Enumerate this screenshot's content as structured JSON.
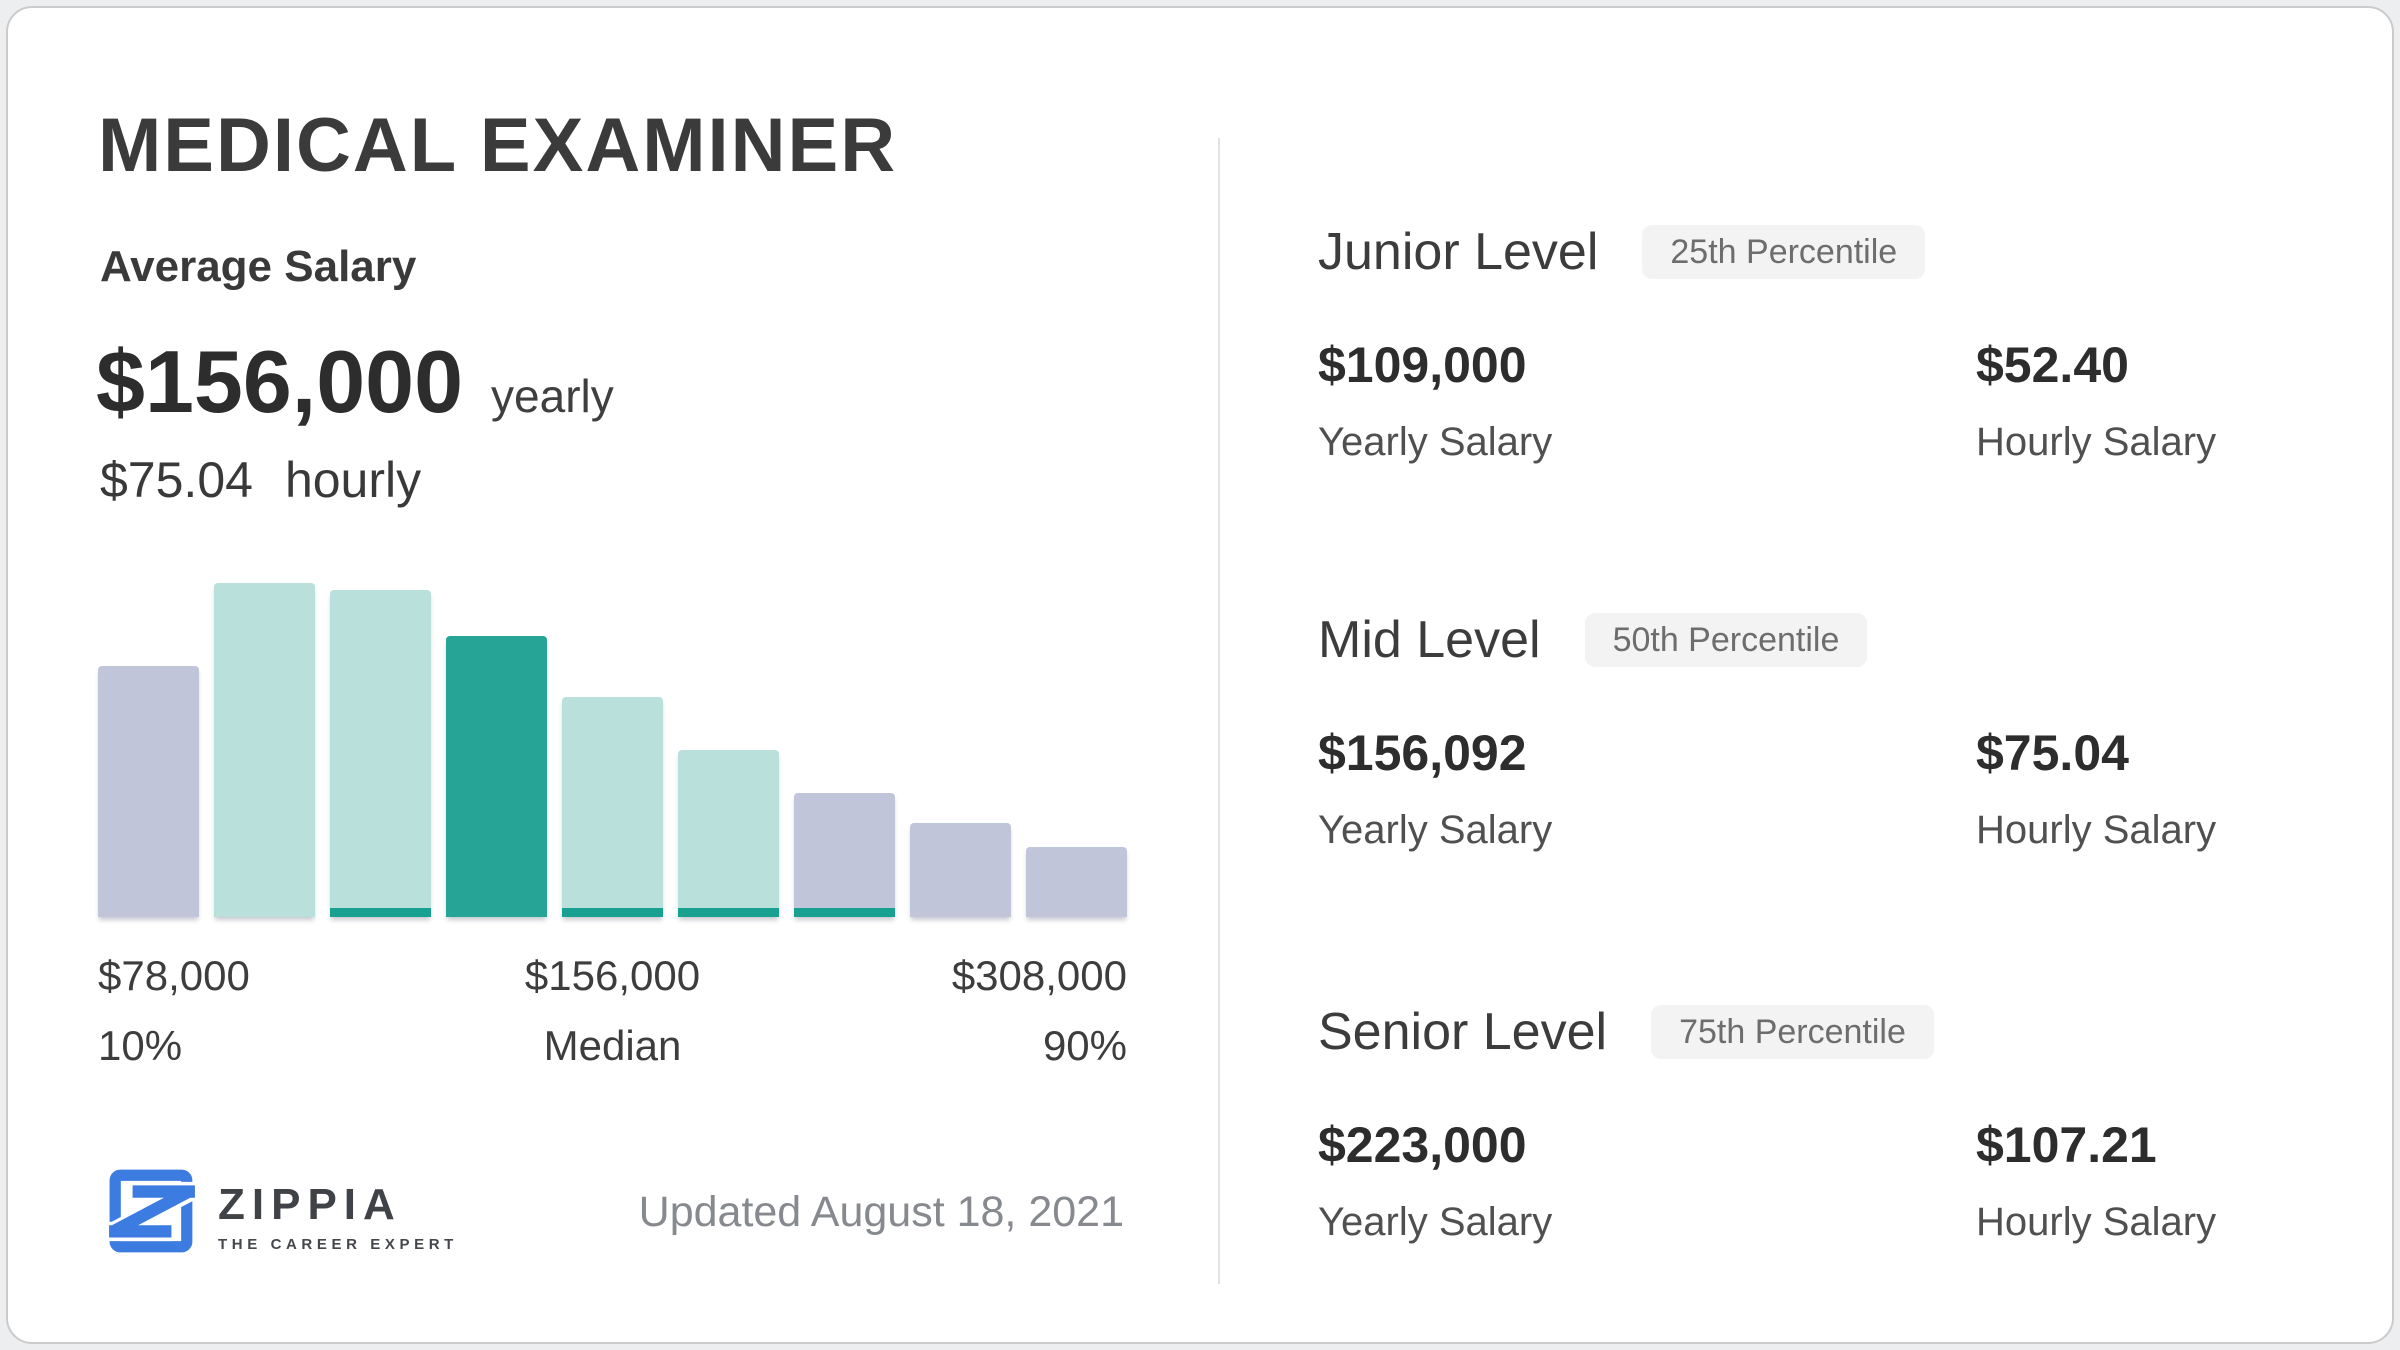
{
  "page": {
    "title": "MEDICAL EXAMINER",
    "updated": "Updated August 18, 2021"
  },
  "average": {
    "label": "Average Salary",
    "yearly_value": "$156,000",
    "yearly_unit": "yearly",
    "hourly_value": "$75.04",
    "hourly_unit": "hourly"
  },
  "chart_data": {
    "type": "bar",
    "title": "Medical Examiner salary distribution",
    "ylabel": "",
    "xlabel": "",
    "ylim": [
      0,
      100
    ],
    "grid": false,
    "legend": "none",
    "bars": [
      {
        "value": 75,
        "color": "lavender",
        "base_strip": false
      },
      {
        "value": 100,
        "color": "teal_light",
        "base_strip": false
      },
      {
        "value": 98,
        "color": "teal_light",
        "base_strip": true
      },
      {
        "value": 84,
        "color": "teal_dark",
        "base_strip": false
      },
      {
        "value": 66,
        "color": "teal_light",
        "base_strip": true
      },
      {
        "value": 50,
        "color": "teal_light",
        "base_strip": true
      },
      {
        "value": 37,
        "color": "lavender",
        "base_strip": true
      },
      {
        "value": 28,
        "color": "lavender",
        "base_strip": false
      },
      {
        "value": 21,
        "color": "lavender",
        "base_strip": false
      }
    ],
    "annotations": [
      {
        "value": "$78,000",
        "label": "10%"
      },
      {
        "value": "$156,000",
        "label": "Median"
      },
      {
        "value": "$308,000",
        "label": "90%"
      }
    ],
    "colors": {
      "lavender": "#c1c5da",
      "teal_light": "#bae0db",
      "teal_dark": "#26a496",
      "strip": "#18a090"
    }
  },
  "logo": {
    "name": "ZIPPIA",
    "tagline": "THE CAREER EXPERT",
    "blue": "#3c7ce1"
  },
  "levels": [
    {
      "name": "Junior Level",
      "percentile": "25th Percentile",
      "yearly": "$109,000",
      "yearly_label": "Yearly Salary",
      "hourly": "$52.40",
      "hourly_label": "Hourly Salary"
    },
    {
      "name": "Mid Level",
      "percentile": "50th Percentile",
      "yearly": "$156,092",
      "yearly_label": "Yearly Salary",
      "hourly": "$75.04",
      "hourly_label": "Hourly Salary"
    },
    {
      "name": "Senior Level",
      "percentile": "75th Percentile",
      "yearly": "$223,000",
      "yearly_label": "Yearly Salary",
      "hourly": "$107.21",
      "hourly_label": "Hourly Salary"
    }
  ]
}
